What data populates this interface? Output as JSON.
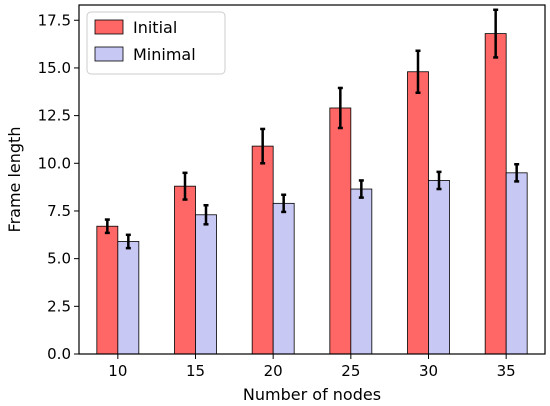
{
  "chart_data": {
    "type": "bar",
    "title": "",
    "xlabel": "Number of nodes",
    "ylabel": "Frame length",
    "categories": [
      "10",
      "15",
      "20",
      "25",
      "30",
      "35"
    ],
    "series": [
      {
        "name": "Initial",
        "color": "#ff6666",
        "values": [
          6.7,
          8.8,
          10.9,
          12.9,
          14.8,
          16.8
        ],
        "errors": [
          0.35,
          0.7,
          0.9,
          1.05,
          1.1,
          1.25
        ]
      },
      {
        "name": "Minimal",
        "color": "#c8c8f5",
        "values": [
          5.9,
          7.3,
          7.9,
          8.65,
          9.1,
          9.5
        ],
        "errors": [
          0.35,
          0.5,
          0.45,
          0.45,
          0.45,
          0.45
        ]
      }
    ],
    "ylim": [
      0,
      18.3
    ],
    "yticks": [
      "0.0",
      "2.5",
      "5.0",
      "7.5",
      "10.0",
      "12.5",
      "15.0",
      "17.5"
    ],
    "ytick_values": [
      0,
      2.5,
      5,
      7.5,
      10,
      12.5,
      15,
      17.5
    ],
    "legend_position": "top-left",
    "grid": false
  }
}
